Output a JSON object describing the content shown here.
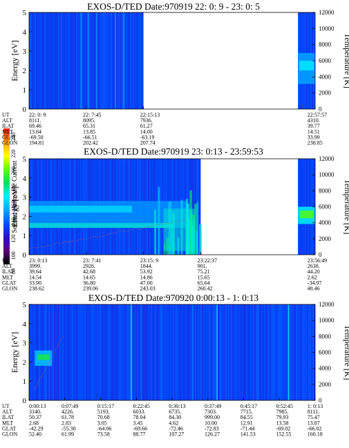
{
  "colorbar": {
    "label": "Second Harmonic Current",
    "ticks": [
      "80",
      "100",
      "120",
      "140",
      "160",
      "180",
      "200",
      "220",
      "240"
    ],
    "colors": [
      "#000000",
      "#5a0078",
      "#2a10c8",
      "#0050ff",
      "#00a8ff",
      "#00f0ff",
      "#00e060",
      "#60ff00",
      "#ffff00",
      "#ffa000",
      "#ff2000"
    ]
  },
  "chart_data": [
    {
      "type": "heatmap",
      "title": "EXOS-D/TED   Date:970919  22: 0: 9 - 23: 0: 5",
      "ylabel": "Energy [eV]",
      "y2label": "Temperature [K]",
      "ylim": [
        0,
        5
      ],
      "yticks": [
        "0",
        "1",
        "2",
        "3",
        "4",
        "5"
      ],
      "y2lim": [
        0,
        12000
      ],
      "y2ticks": [
        "0",
        "2000",
        "4000",
        "6000",
        "8000",
        "10000",
        "12000"
      ],
      "row_labels": [
        "UT",
        "ALT",
        "ILAT",
        "MLT",
        "GLAT",
        "GLON"
      ],
      "columns": [
        {
          "pos": 0.0,
          "values": [
            "22: 0: 9",
            "8111.",
            "69.46",
            "13.64",
            "-69.50",
            "194.81"
          ]
        },
        {
          "pos": 0.2,
          "values": [
            "22: 7:45",
            "8095.",
            "65.31",
            "13.85",
            "-66.51",
            "202.42"
          ]
        },
        {
          "pos": 0.4,
          "values": [
            "22:15:13",
            "7936.",
            "61.27",
            "14.00",
            "-63.19",
            "207.74"
          ]
        },
        {
          "pos": 1.0,
          "values": [
            "22:57:57",
            "4310.",
            "39.77",
            "14.51",
            "33.99",
            "238.85"
          ]
        }
      ],
      "data_extent": [
        [
          0.0,
          0.4
        ],
        [
          0.94,
          1.0
        ]
      ],
      "background_level": 125
    },
    {
      "type": "heatmap",
      "title": "EXOS-D/TED   Date:970919  23: 0:13 - 23:59:53",
      "ylabel": "Energy [eV]",
      "y2label": "Temperature [K]",
      "ylim": [
        0,
        5
      ],
      "yticks": [
        "0",
        "1",
        "2",
        "3",
        "4",
        "5"
      ],
      "y2lim": [
        0,
        12000
      ],
      "y2ticks": [
        "0",
        "2000",
        "4000",
        "6000",
        "8000",
        "10000",
        "12000"
      ],
      "row_labels": [
        "UT",
        "ALT",
        "ILAT",
        "MLT",
        "GLAT",
        "GLON"
      ],
      "columns": [
        {
          "pos": 0.0,
          "values": [
            "23: 0:13",
            "3999.",
            "39.64",
            "14.54",
            "33.90",
            "238.62"
          ]
        },
        {
          "pos": 0.2,
          "values": [
            "23: 7:41",
            "2926.",
            "42.68",
            "14.65",
            "36.80",
            "239.06"
          ]
        },
        {
          "pos": 0.4,
          "values": [
            "23:15: 9",
            "1844.",
            "53.92",
            "14.86",
            "47.00",
            "243.03"
          ]
        },
        {
          "pos": 0.6,
          "values": [
            "23:22:37",
            "901.",
            "75.21",
            "15.65",
            "65.64",
            "260.42"
          ]
        },
        {
          "pos": 1.0,
          "values": [
            "23:56:49",
            "2638.",
            "44.20",
            "2.62",
            "-34.97",
            "48.46"
          ]
        }
      ],
      "data_extent": [
        [
          0.0,
          0.6
        ],
        [
          0.94,
          1.0
        ]
      ],
      "background_level": 125
    },
    {
      "type": "heatmap",
      "title": "EXOS-D/TED   Date:970920   0:00:13 -  1: 0:13",
      "ylabel": "Energy [eV]",
      "y2label": "Temperature [K]",
      "ylim": [
        0,
        5
      ],
      "yticks": [
        "0",
        "1",
        "2",
        "3",
        "4",
        "5"
      ],
      "y2lim": [
        0,
        12000
      ],
      "y2ticks": [
        "0",
        "2000",
        "4000",
        "6000",
        "8000",
        "10000",
        "12000"
      ],
      "row_labels": [
        "UT",
        "ALT",
        "ILAT",
        "MLT",
        "GLAT",
        "GLON"
      ],
      "columns": [
        {
          "pos": 0.0,
          "values": [
            "0:00:13",
            "3140.",
            "50.37",
            "2.68",
            "-42.29",
            "52.40"
          ]
        },
        {
          "pos": 0.125,
          "values": [
            "0:07:49",
            "4226.",
            "61.78",
            "2.83",
            "-55.30",
            "61.99"
          ]
        },
        {
          "pos": 0.25,
          "values": [
            "0:15:17",
            "5193.",
            "70.68",
            "3.05",
            "-64.06",
            "73.58"
          ]
        },
        {
          "pos": 0.375,
          "values": [
            "0:22:45",
            "6033.",
            "78.04",
            "3.45",
            "-69.66",
            "88.77"
          ]
        },
        {
          "pos": 0.5,
          "values": [
            "0:30:13",
            "6735.",
            "84.30",
            "4.62",
            "-72.46",
            "107.27"
          ]
        },
        {
          "pos": 0.625,
          "values": [
            "0:37:49",
            "7303.",
            "999.00",
            "10.00",
            "-72.83",
            "126.27"
          ]
        },
        {
          "pos": 0.75,
          "values": [
            "0:45:17",
            "7715.",
            "84.55",
            "12.91",
            "-71.44",
            "141.53"
          ]
        },
        {
          "pos": 0.875,
          "values": [
            "0:52:45",
            "7985.",
            "79.93",
            "13.58",
            "-69.02",
            "152.55"
          ]
        },
        {
          "pos": 1.0,
          "values": [
            "1: 0:13",
            "8111.",
            "75.47",
            "13.87",
            "-66.02",
            "160.18"
          ]
        }
      ],
      "data_extent": [
        [
          0.0,
          1.0
        ]
      ],
      "background_level": 125
    }
  ]
}
